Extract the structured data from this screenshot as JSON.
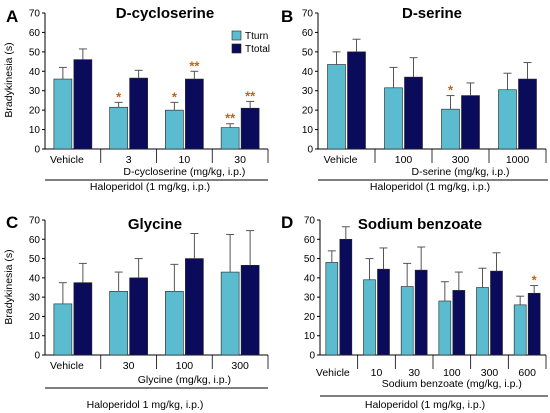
{
  "legend": {
    "turn": "Tturn",
    "total": "Ttotal"
  },
  "colors": {
    "turn": "#5bbcd0",
    "total": "#0b0b5c",
    "edge": "#222222",
    "star": "#c0651a",
    "error": "#555555"
  },
  "chart_data": [
    {
      "type": "bar",
      "letter": "A",
      "title": "D-cycloserine",
      "ylabel": "Bradykinesia (s)",
      "ylim": [
        0,
        70
      ],
      "yticks": [
        0,
        10,
        20,
        30,
        40,
        50,
        60,
        70
      ],
      "categories": [
        "Vehicle",
        "3",
        "10",
        "30"
      ],
      "xlabel": "D-cycloserine (mg/kg, i.p.)",
      "footer": "Haloperidol (1 mg/kg, i.p.)",
      "series": [
        {
          "name": "Tturn",
          "values": [
            36,
            21.5,
            20,
            11
          ],
          "errors": [
            6,
            2.5,
            4,
            2
          ],
          "stars": [
            "",
            "*",
            "*",
            "**"
          ]
        },
        {
          "name": "Ttotal",
          "values": [
            46,
            36.5,
            36,
            21
          ],
          "errors": [
            5.5,
            4,
            4,
            3.5
          ],
          "stars": [
            "",
            "",
            "**",
            "**"
          ]
        }
      ]
    },
    {
      "type": "bar",
      "letter": "B",
      "title": "D-serine",
      "ylabel": "",
      "ylim": [
        0,
        70
      ],
      "yticks": [
        0,
        10,
        20,
        30,
        40,
        50,
        60,
        70
      ],
      "categories": [
        "Vehicle",
        "100",
        "300",
        "1000"
      ],
      "xlabel": "D-serine (mg/kg, i.p.)",
      "footer": "Haloperidol (1 mg/kg, i.p.)",
      "series": [
        {
          "name": "Tturn",
          "values": [
            43.5,
            31.5,
            20.5,
            30.5
          ],
          "errors": [
            6.5,
            10.5,
            7,
            8.5
          ],
          "stars": [
            "",
            "",
            "*",
            ""
          ]
        },
        {
          "name": "Ttotal",
          "values": [
            50,
            37,
            27.5,
            36
          ],
          "errors": [
            6.5,
            10,
            6.5,
            8.5
          ],
          "stars": [
            "",
            "",
            "",
            ""
          ]
        }
      ]
    },
    {
      "type": "bar",
      "letter": "C",
      "title": "Glycine",
      "ylabel": "Bradykinesia (s)",
      "ylim": [
        0,
        70
      ],
      "yticks": [
        0,
        10,
        20,
        30,
        40,
        50,
        60,
        70
      ],
      "categories": [
        "Vehicle",
        "30",
        "100",
        "300"
      ],
      "xlabel": "Glycine (mg/kg, i.p.)",
      "footer": "Haloperidol 1 mg/kg, i.p.)",
      "series": [
        {
          "name": "Tturn",
          "values": [
            26.5,
            33,
            33,
            43
          ],
          "errors": [
            11,
            10,
            14,
            19.5
          ],
          "stars": [
            "",
            "",
            "",
            ""
          ]
        },
        {
          "name": "Ttotal",
          "values": [
            37.5,
            40,
            50,
            46.5
          ],
          "errors": [
            10,
            10,
            13,
            18
          ],
          "stars": [
            "",
            "",
            "",
            ""
          ]
        }
      ]
    },
    {
      "type": "bar",
      "letter": "D",
      "title": "Sodium benzoate",
      "ylabel": "",
      "ylim": [
        0,
        70
      ],
      "yticks": [
        0,
        10,
        20,
        30,
        40,
        50,
        60,
        70
      ],
      "categories": [
        "Vehicle",
        "10",
        "30",
        "100",
        "300",
        "600"
      ],
      "xlabel": "Sodium benzoate (mg/kg, i.p.)",
      "footer": "Haloperidol (1 mg/kg, i.p.)",
      "series": [
        {
          "name": "Tturn",
          "values": [
            48,
            39,
            35.5,
            28,
            35,
            26
          ],
          "errors": [
            6,
            11,
            12,
            10,
            10,
            4.5
          ],
          "stars": [
            "",
            "",
            "",
            "",
            "",
            ""
          ]
        },
        {
          "name": "Ttotal",
          "values": [
            60,
            44.5,
            44,
            33.5,
            43.5,
            32
          ],
          "errors": [
            6.5,
            11,
            12,
            9.5,
            9.5,
            4
          ],
          "stars": [
            "",
            "",
            "",
            "",
            "",
            "*"
          ]
        }
      ]
    }
  ]
}
